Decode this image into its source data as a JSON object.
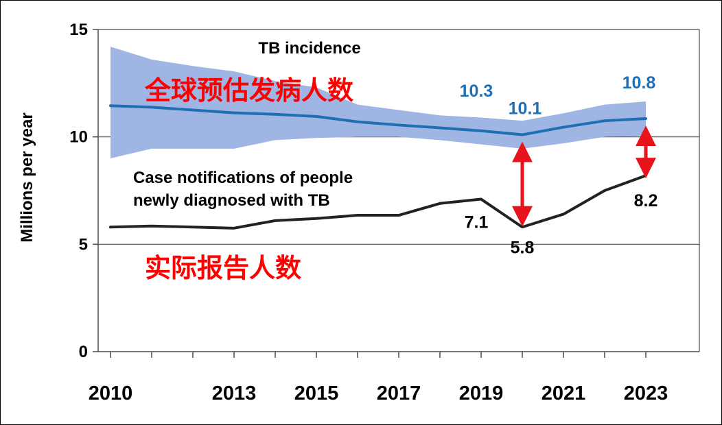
{
  "chart_data": {
    "type": "line",
    "ylabel": "Millions per year",
    "ylim": [
      0,
      15
    ],
    "yticks": [
      {
        "value": 0,
        "label": "0"
      },
      {
        "value": 5,
        "label": "5"
      },
      {
        "value": 10,
        "label": "10"
      },
      {
        "value": 15,
        "label": "15"
      }
    ],
    "xlim": [
      2009.7,
      2024.3
    ],
    "xticks": [
      2010,
      2011,
      2012,
      2013,
      2014,
      2015,
      2016,
      2017,
      2018,
      2019,
      2020,
      2021,
      2022,
      2023
    ],
    "xtick_labels": [
      {
        "year": 2010,
        "label": "2010"
      },
      {
        "year": 2013,
        "label": "2013"
      },
      {
        "year": 2015,
        "label": "2015"
      },
      {
        "year": 2017,
        "label": "2017"
      },
      {
        "year": 2019,
        "label": "2019"
      },
      {
        "year": 2021,
        "label": "2021"
      },
      {
        "year": 2023,
        "label": "2023"
      }
    ],
    "grid_y": true,
    "x": [
      2010,
      2011,
      2012,
      2013,
      2014,
      2015,
      2016,
      2017,
      2018,
      2019,
      2020,
      2021,
      2022,
      2023
    ],
    "series": [
      {
        "key": "incidence",
        "name": "TB incidence",
        "color": "#1f6fb5",
        "band_color": "#9fb5e3",
        "values": [
          11.45,
          11.38,
          11.25,
          11.12,
          11.05,
          10.95,
          10.7,
          10.55,
          10.42,
          10.28,
          10.1,
          10.45,
          10.75,
          10.85
        ],
        "lower": [
          9.0,
          9.45,
          9.45,
          9.45,
          9.85,
          9.95,
          10.0,
          10.0,
          9.85,
          9.65,
          9.45,
          9.7,
          10.0,
          10.05
        ],
        "upper": [
          14.2,
          13.6,
          13.3,
          13.05,
          12.6,
          12.3,
          11.5,
          11.25,
          11.0,
          10.9,
          10.75,
          11.1,
          11.5,
          11.65
        ]
      },
      {
        "key": "notifications",
        "name": "Case notifications of people newly diagnosed with TB",
        "color": "#222222",
        "values": [
          5.8,
          5.85,
          5.8,
          5.75,
          6.1,
          6.2,
          6.35,
          6.35,
          6.9,
          7.1,
          5.8,
          6.4,
          7.5,
          8.2
        ]
      }
    ],
    "annotations": {
      "incidence_title": "TB incidence",
      "notifications_title_line1": "Case notifications of people",
      "notifications_title_line2": "newly diagnosed with TB",
      "incidence_cn": "全球预估发病人数",
      "notifications_cn": "实际报告人数"
    },
    "value_labels": [
      {
        "series": "incidence",
        "year": 2019,
        "text": "10.3"
      },
      {
        "series": "incidence",
        "year": 2020,
        "text": "10.1"
      },
      {
        "series": "incidence",
        "year": 2023,
        "text": "10.8"
      },
      {
        "series": "notifications",
        "year": 2019,
        "text": "7.1"
      },
      {
        "series": "notifications",
        "year": 2020,
        "text": "5.8"
      },
      {
        "series": "notifications",
        "year": 2023,
        "text": "8.2"
      }
    ],
    "gap_arrows": [
      {
        "year": 2020,
        "from": 9.3,
        "to": 6.3,
        "color": "#e8141c"
      },
      {
        "year": 2023,
        "from": 10.05,
        "to": 8.55,
        "color": "#e8141c"
      }
    ]
  }
}
